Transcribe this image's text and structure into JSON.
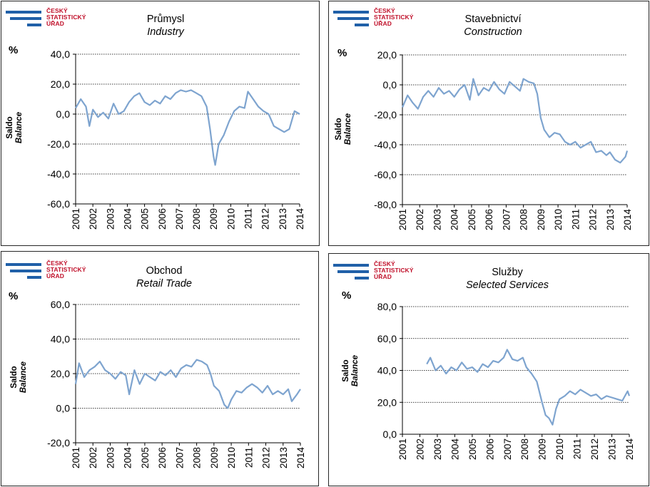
{
  "logo": {
    "line1": "ČESKÝ",
    "line2": "STATISTICKÝ",
    "line3": "ÚŘAD"
  },
  "colors": {
    "series": "#7ea4cf",
    "logo_blue": "#2060a8",
    "logo_red": "#c0102a"
  },
  "chart_data": [
    {
      "type": "line",
      "title": "Průmysl",
      "subtitle": "Industry",
      "unit": "%",
      "ylabel": "Saldo",
      "ylabel2": "Balance",
      "ylim": [
        -60,
        40
      ],
      "yticks": [
        -60,
        -40,
        -20,
        0,
        20,
        40
      ],
      "ytick_labels": [
        "-60,0",
        "-40,0",
        "-20,0",
        "0,0",
        "20,0",
        "40,0"
      ],
      "xtick_labels": [
        "2001",
        "2002",
        "2003",
        "2004",
        "2005",
        "2006",
        "2007",
        "2008",
        "2009",
        "2010",
        "2011",
        "2012",
        "2013",
        "2014"
      ],
      "grid": "dotted horizontal",
      "series": [
        {
          "x": [
            2001.0,
            2001.3,
            2001.6,
            2001.8,
            2002.0,
            2002.3,
            2002.6,
            2002.9,
            2003.2,
            2003.5,
            2003.8,
            2004.1,
            2004.4,
            2004.7,
            2005.0,
            2005.3,
            2005.6,
            2005.9,
            2006.2,
            2006.5,
            2006.8,
            2007.1,
            2007.4,
            2007.7,
            2008.0,
            2008.3,
            2008.6,
            2008.8,
            2009.0,
            2009.1,
            2009.3,
            2009.6,
            2009.9,
            2010.2,
            2010.5,
            2010.8,
            2011.0,
            2011.3,
            2011.6,
            2011.9,
            2012.2,
            2012.5,
            2012.8,
            2013.1,
            2013.4,
            2013.7,
            2014.0
          ],
          "values": [
            4,
            10,
            5,
            -8,
            3,
            -2,
            1,
            -3,
            7,
            0,
            2,
            8,
            12,
            14,
            8,
            6,
            9,
            7,
            12,
            10,
            14,
            16,
            15,
            16,
            14,
            12,
            5,
            -10,
            -28,
            -34,
            -20,
            -14,
            -5,
            2,
            5,
            4,
            15,
            10,
            5,
            2,
            0,
            -8,
            -10,
            -12,
            -10,
            2,
            0
          ]
        }
      ]
    },
    {
      "type": "line",
      "title": "Stavebnictví",
      "subtitle": "Construction",
      "unit": "%",
      "ylabel": "Saldo",
      "ylabel2": "Balance",
      "ylim": [
        -80,
        20
      ],
      "yticks": [
        -80,
        -60,
        -40,
        -20,
        0,
        20
      ],
      "ytick_labels": [
        "-80,0",
        "-60,0",
        "-40,0",
        "-20,0",
        "0,0",
        "20,0"
      ],
      "xtick_labels": [
        "2001",
        "2002",
        "2003",
        "2004",
        "2005",
        "2006",
        "2007",
        "2008",
        "2009",
        "2010",
        "2011",
        "2012",
        "2013",
        "2014"
      ],
      "grid": "dotted horizontal",
      "series": [
        {
          "x": [
            2001.0,
            2001.3,
            2001.6,
            2001.9,
            2002.2,
            2002.5,
            2002.8,
            2003.1,
            2003.4,
            2003.7,
            2004.0,
            2004.3,
            2004.6,
            2004.9,
            2005.1,
            2005.4,
            2005.7,
            2006.0,
            2006.3,
            2006.6,
            2006.9,
            2007.2,
            2007.5,
            2007.8,
            2008.0,
            2008.3,
            2008.6,
            2008.8,
            2009.0,
            2009.2,
            2009.5,
            2009.8,
            2010.1,
            2010.4,
            2010.7,
            2011.0,
            2011.3,
            2011.6,
            2011.9,
            2012.2,
            2012.5,
            2012.8,
            2013.0,
            2013.3,
            2013.6,
            2013.9,
            2014.0
          ],
          "values": [
            -15,
            -7,
            -12,
            -16,
            -8,
            -4,
            -8,
            -2,
            -6,
            -4,
            -8,
            -3,
            0,
            -10,
            4,
            -7,
            -2,
            -4,
            2,
            -3,
            -6,
            2,
            -1,
            -4,
            4,
            2,
            1,
            -6,
            -22,
            -30,
            -35,
            -32,
            -33,
            -38,
            -40,
            -38,
            -42,
            -40,
            -38,
            -45,
            -44,
            -47,
            -45,
            -50,
            -52,
            -48,
            -44
          ]
        }
      ]
    },
    {
      "type": "line",
      "title": "Obchod",
      "subtitle": "Retail Trade",
      "unit": "%",
      "ylabel": "Saldo",
      "ylabel2": "Balance",
      "ylim": [
        -20,
        60
      ],
      "yticks": [
        -20,
        0,
        20,
        40,
        60
      ],
      "ytick_labels": [
        "-20,0",
        "0,0",
        "20,0",
        "40,0",
        "60,0"
      ],
      "xtick_labels": [
        "2001",
        "2002",
        "2003",
        "2004",
        "2005",
        "2006",
        "2007",
        "2008",
        "2009",
        "2010",
        "2011",
        "2012",
        "2013",
        "2014"
      ],
      "grid": "dotted horizontal",
      "series": [
        {
          "x": [
            2001.0,
            2001.2,
            2001.5,
            2001.8,
            2002.1,
            2002.4,
            2002.7,
            2003.0,
            2003.3,
            2003.6,
            2003.9,
            2004.1,
            2004.4,
            2004.7,
            2005.0,
            2005.3,
            2005.6,
            2005.9,
            2006.2,
            2006.5,
            2006.8,
            2007.1,
            2007.4,
            2007.7,
            2008.0,
            2008.3,
            2008.6,
            2008.8,
            2009.0,
            2009.3,
            2009.6,
            2009.8,
            2010.0,
            2010.3,
            2010.6,
            2010.9,
            2011.2,
            2011.5,
            2011.8,
            2012.1,
            2012.4,
            2012.7,
            2013.0,
            2013.3,
            2013.5,
            2013.8,
            2014.0
          ],
          "values": [
            14,
            26,
            18,
            22,
            24,
            27,
            22,
            20,
            17,
            21,
            19,
            8,
            22,
            14,
            20,
            18,
            16,
            21,
            19,
            22,
            18,
            23,
            25,
            24,
            28,
            27,
            25,
            20,
            13,
            10,
            2,
            0,
            5,
            10,
            9,
            12,
            14,
            12,
            9,
            13,
            8,
            10,
            8,
            11,
            4,
            8,
            11
          ]
        }
      ]
    },
    {
      "type": "line",
      "title": "Služby",
      "subtitle": "Selected Services",
      "unit": "%",
      "ylabel": "Saldo",
      "ylabel2": "Balance",
      "ylim": [
        0,
        80
      ],
      "yticks": [
        0,
        20,
        40,
        60,
        80
      ],
      "ytick_labels": [
        "0,0",
        "20,0",
        "40,0",
        "60,0",
        "80,0"
      ],
      "xtick_labels": [
        "2001",
        "2002",
        "2003",
        "2004",
        "2005",
        "2006",
        "2007",
        "2008",
        "2009",
        "2010",
        "2011",
        "2012",
        "2013",
        "2014"
      ],
      "grid": "dotted horizontal",
      "series": [
        {
          "x": [
            2002.4,
            2002.6,
            2002.9,
            2003.2,
            2003.5,
            2003.8,
            2004.1,
            2004.4,
            2004.7,
            2005.0,
            2005.3,
            2005.6,
            2005.9,
            2006.2,
            2006.5,
            2006.8,
            2007.0,
            2007.3,
            2007.6,
            2007.9,
            2008.1,
            2008.4,
            2008.7,
            2009.0,
            2009.2,
            2009.4,
            2009.6,
            2009.8,
            2010.0,
            2010.3,
            2010.6,
            2010.9,
            2011.2,
            2011.5,
            2011.8,
            2012.1,
            2012.4,
            2012.7,
            2013.0,
            2013.3,
            2013.6,
            2013.9,
            2014.0
          ],
          "values": [
            44,
            48,
            40,
            43,
            38,
            42,
            40,
            45,
            41,
            42,
            39,
            44,
            42,
            46,
            45,
            48,
            53,
            47,
            46,
            48,
            42,
            38,
            33,
            20,
            12,
            10,
            6,
            16,
            22,
            24,
            27,
            25,
            28,
            26,
            24,
            25,
            22,
            24,
            23,
            22,
            21,
            27,
            24
          ]
        }
      ]
    }
  ]
}
